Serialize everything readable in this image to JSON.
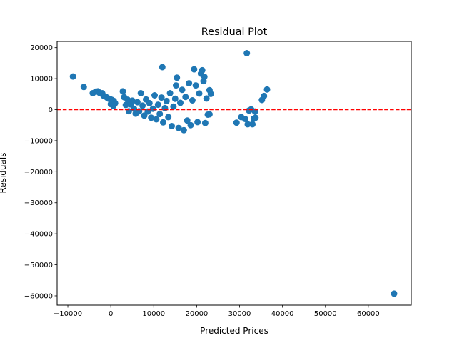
{
  "chart_data": {
    "type": "scatter",
    "title": "Residual Plot",
    "xlabel": "Predicted Prices",
    "ylabel": "Residuals",
    "xlim": [
      -12500,
      70000
    ],
    "ylim": [
      -63000,
      22000
    ],
    "xticks": [
      -10000,
      0,
      10000,
      20000,
      30000,
      40000,
      50000,
      60000
    ],
    "yticks": [
      -60000,
      -50000,
      -40000,
      -30000,
      -20000,
      -10000,
      0,
      10000,
      20000
    ],
    "tick_labels_x": [
      "−10000",
      "0",
      "10000",
      "20000",
      "30000",
      "40000",
      "50000",
      "60000"
    ],
    "tick_labels_y": [
      "−60000",
      "−50000",
      "−40000",
      "−30000",
      "−20000",
      "−10000",
      "0",
      "10000",
      "20000"
    ],
    "reference_line": {
      "y": 0,
      "color": "#ff0000",
      "style": "dashed"
    },
    "grid": false,
    "point_color": "#1f77b4",
    "points": [
      [
        -8800,
        10700
      ],
      [
        -6300,
        7300
      ],
      [
        -4200,
        5300
      ],
      [
        -3500,
        5800
      ],
      [
        -3000,
        5900
      ],
      [
        -2600,
        5400
      ],
      [
        -2000,
        5300
      ],
      [
        -1700,
        4500
      ],
      [
        -1200,
        4200
      ],
      [
        -800,
        3800
      ],
      [
        -400,
        3500
      ],
      [
        0,
        3300
      ],
      [
        300,
        3100
      ],
      [
        700,
        2800
      ],
      [
        1000,
        2100
      ],
      [
        600,
        1200
      ],
      [
        0,
        1800
      ],
      [
        2800,
        5900
      ],
      [
        3100,
        4000
      ],
      [
        3500,
        1500
      ],
      [
        3900,
        3200
      ],
      [
        4200,
        -500
      ],
      [
        4600,
        1700
      ],
      [
        5000,
        2900
      ],
      [
        5400,
        300
      ],
      [
        5800,
        -1300
      ],
      [
        6200,
        2400
      ],
      [
        6600,
        -500
      ],
      [
        7000,
        5300
      ],
      [
        7400,
        1300
      ],
      [
        7800,
        -1900
      ],
      [
        8200,
        3300
      ],
      [
        8600,
        -600
      ],
      [
        9000,
        2100
      ],
      [
        9400,
        -2600
      ],
      [
        9800,
        300
      ],
      [
        10200,
        4600
      ],
      [
        10600,
        -3100
      ],
      [
        11000,
        1600
      ],
      [
        11400,
        -1400
      ],
      [
        11800,
        3900
      ],
      [
        12000,
        13700
      ],
      [
        12200,
        -4100
      ],
      [
        12600,
        500
      ],
      [
        13000,
        2800
      ],
      [
        13400,
        -2400
      ],
      [
        13800,
        5300
      ],
      [
        14200,
        -5300
      ],
      [
        14600,
        1000
      ],
      [
        15000,
        3500
      ],
      [
        15200,
        7800
      ],
      [
        15400,
        10300
      ],
      [
        15800,
        -5900
      ],
      [
        16200,
        2200
      ],
      [
        16600,
        6400
      ],
      [
        17000,
        -6600
      ],
      [
        17400,
        4100
      ],
      [
        17800,
        -3500
      ],
      [
        18200,
        8500
      ],
      [
        18600,
        -5000
      ],
      [
        19000,
        3000
      ],
      [
        19400,
        13000
      ],
      [
        19800,
        7800
      ],
      [
        20200,
        -4000
      ],
      [
        20600,
        5200
      ],
      [
        21000,
        11600
      ],
      [
        21300,
        12700
      ],
      [
        21600,
        9200
      ],
      [
        21800,
        10600
      ],
      [
        22000,
        -4300
      ],
      [
        22300,
        3600
      ],
      [
        22600,
        -1600
      ],
      [
        23000,
        6300
      ],
      [
        23300,
        5100
      ],
      [
        23000,
        -1500
      ],
      [
        29300,
        -4200
      ],
      [
        30400,
        -2400
      ],
      [
        31300,
        -3000
      ],
      [
        31700,
        18200
      ],
      [
        31900,
        -4700
      ],
      [
        32200,
        -300
      ],
      [
        32700,
        100
      ],
      [
        33000,
        -4700
      ],
      [
        33300,
        -2900
      ],
      [
        33700,
        -2600
      ],
      [
        33600,
        -600
      ],
      [
        35200,
        3100
      ],
      [
        35700,
        4400
      ],
      [
        36400,
        6500
      ],
      [
        66000,
        -59300
      ]
    ]
  }
}
